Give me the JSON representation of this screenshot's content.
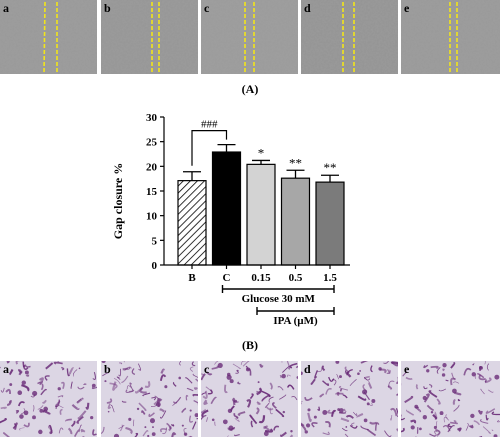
{
  "figure": {
    "label_a": "(A)",
    "label_b": "(B)",
    "scratch_panels": [
      "a",
      "b",
      "c",
      "d",
      "e"
    ],
    "stain_panels": [
      "a",
      "b",
      "c",
      "d",
      "e"
    ],
    "scratch_line_color": "#f2e51a",
    "stain_color": "#6a2c78"
  },
  "chart_data": {
    "type": "bar",
    "categories": [
      "B",
      "C",
      "0.15",
      "0.5",
      "1.5"
    ],
    "values": [
      17.1,
      22.9,
      20.4,
      17.6,
      16.8
    ],
    "errors": [
      1.8,
      1.5,
      0.8,
      1.6,
      1.4
    ],
    "annotations": [
      "",
      "",
      "*",
      "**",
      "**"
    ],
    "bar_fills": [
      "hatched",
      "#000000",
      "#d3d3d3",
      "#a7a7a7",
      "#7b7b7b"
    ],
    "ylabel": "Gap closure %",
    "ylim": [
      0,
      30
    ],
    "yticks": [
      0,
      5,
      10,
      15,
      20,
      25,
      30
    ],
    "comparison": {
      "from": 0,
      "to": 1,
      "label": "###"
    },
    "group_labels": [
      {
        "label": "Glucose 30 mM",
        "from": 1,
        "to": 4
      },
      {
        "label": "IPA (µM)",
        "from": 2,
        "to": 4
      }
    ],
    "grid": false
  }
}
